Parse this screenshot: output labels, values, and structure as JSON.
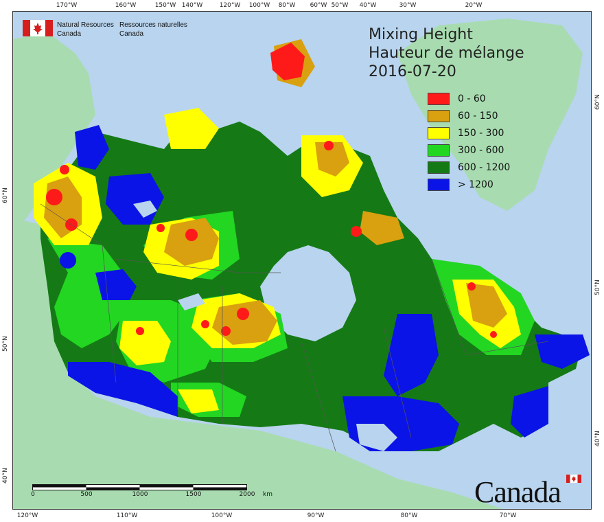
{
  "header": {
    "agency_en_line1": "Natural Resources",
    "agency_en_line2": "Canada",
    "agency_fr_line1": "Ressources naturelles",
    "agency_fr_line2": "Canada"
  },
  "title": {
    "en": "Mixing Height",
    "fr": "Hauteur de mélange",
    "date": "2016-07-20"
  },
  "legend": {
    "items": [
      {
        "label": "0 - 60",
        "color": "#ff1a1a"
      },
      {
        "label": "60 - 150",
        "color": "#d9a00f"
      },
      {
        "label": "150 - 300",
        "color": "#ffff00"
      },
      {
        "label": "300 - 600",
        "color": "#22d622"
      },
      {
        "label": "600 - 1200",
        "color": "#157a15"
      },
      {
        "label": "> 1200",
        "color": "#0a14e6"
      }
    ]
  },
  "axes": {
    "top_ticks": [
      "170°W",
      "160°W",
      "150°W",
      "140°W",
      "120°W",
      "100°W",
      "80°W",
      "60°W",
      "50°W",
      "40°W",
      "30°W",
      "20°W"
    ],
    "bottom_ticks": [
      "120°W",
      "110°W",
      "100°W",
      "90°W",
      "80°W",
      "70°W"
    ],
    "left_ticks": [
      "60°N",
      "50°N",
      "40°N"
    ],
    "right_ticks": [
      "60°N",
      "50°N",
      "40°N"
    ]
  },
  "scalebar": {
    "labels": [
      "0",
      "500",
      "1000",
      "1500",
      "2000"
    ],
    "unit": "km"
  },
  "wordmark": {
    "text": "Canada"
  },
  "colors": {
    "ocean": "#b8d4ee",
    "land_outside": "#a8dcb0",
    "boundary": "#555555"
  }
}
